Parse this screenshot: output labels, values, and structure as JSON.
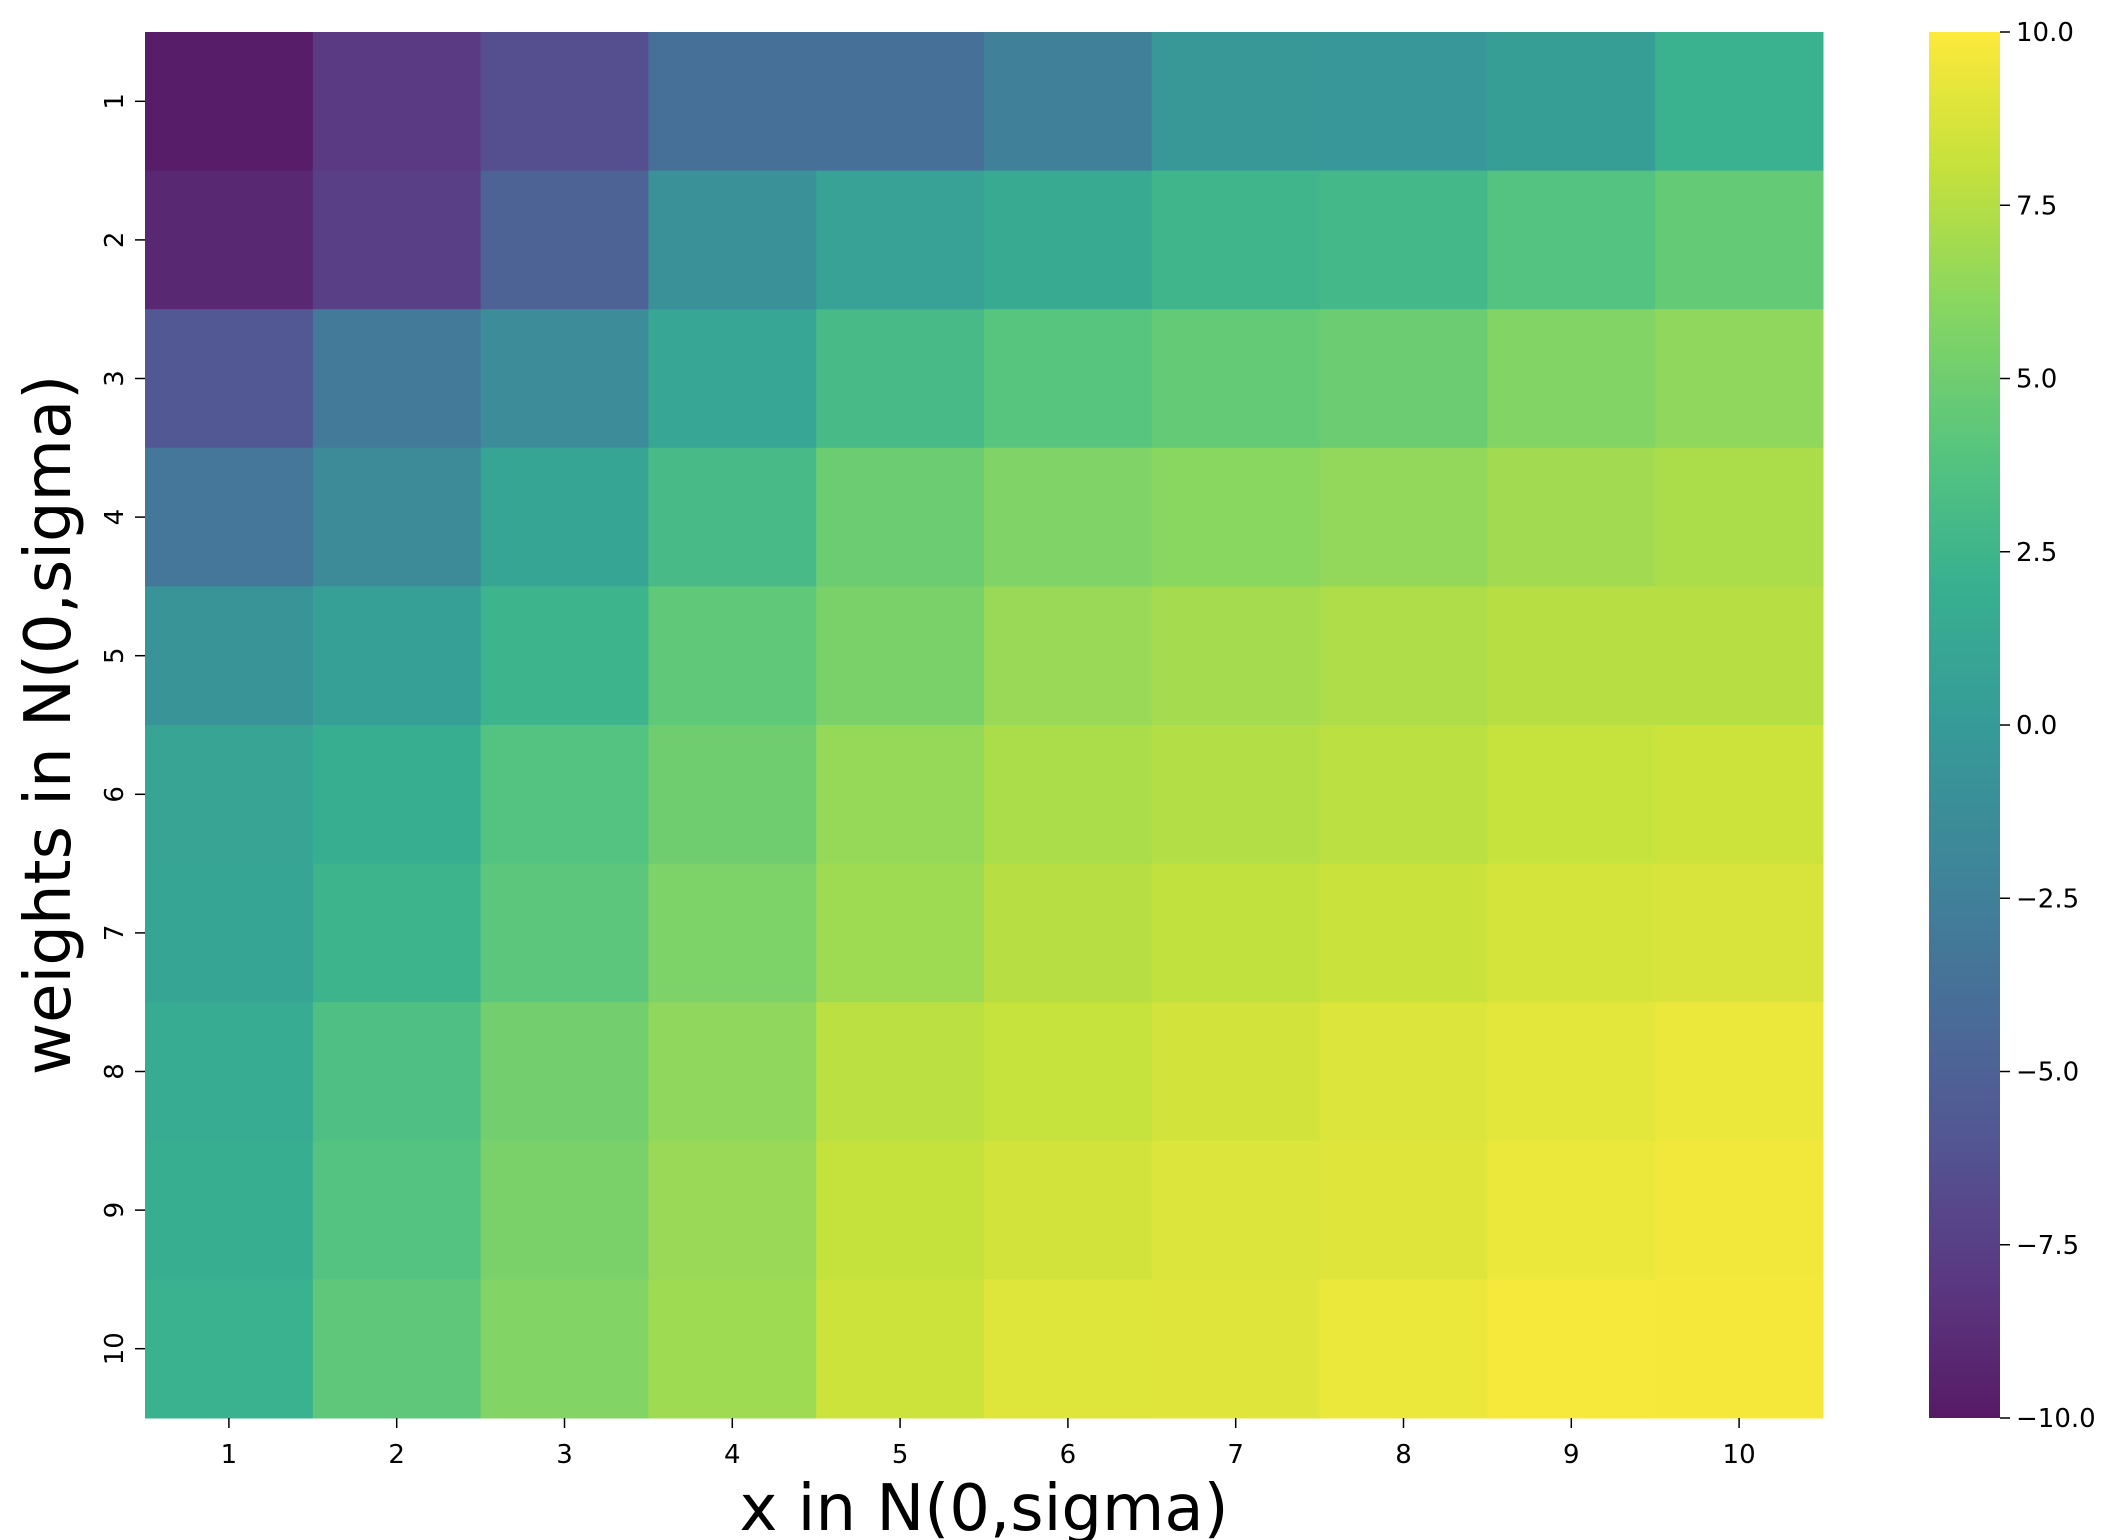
{
  "chart_data": {
    "type": "heatmap",
    "title": "",
    "xlabel": "x in N(0,sigma)",
    "ylabel": "weights in N(0,sigma)",
    "x_categories": [
      "1",
      "2",
      "3",
      "4",
      "5",
      "6",
      "7",
      "8",
      "9",
      "10"
    ],
    "y_categories": [
      "1",
      "2",
      "3",
      "4",
      "5",
      "6",
      "7",
      "8",
      "9",
      "10"
    ],
    "values": [
      [
        -9.8,
        -7.9,
        -6.5,
        -3.8,
        -3.8,
        -2.4,
        -0.3,
        -0.4,
        0.3,
        2.2
      ],
      [
        -9.1,
        -7.6,
        -4.9,
        -0.8,
        0.7,
        1.4,
        2.5,
        2.8,
        3.8,
        4.6
      ],
      [
        -5.8,
        -3.0,
        -1.3,
        1.1,
        3.0,
        4.0,
        4.6,
        4.9,
        5.8,
        6.3
      ],
      [
        -3.2,
        -1.6,
        1.0,
        3.0,
        4.9,
        5.7,
        6.1,
        6.4,
        6.9,
        7.2
      ],
      [
        -0.7,
        0.5,
        2.4,
        4.4,
        5.5,
        6.6,
        7.0,
        7.3,
        7.6,
        7.6
      ],
      [
        0.9,
        1.8,
        3.8,
        5.0,
        6.5,
        7.2,
        7.5,
        7.7,
        8.1,
        8.3
      ],
      [
        1.0,
        2.4,
        4.2,
        5.6,
        6.8,
        7.6,
        7.9,
        8.2,
        8.6,
        8.7
      ],
      [
        1.6,
        3.5,
        5.2,
        6.3,
        7.7,
        8.1,
        8.5,
        8.8,
        9.1,
        9.4
      ],
      [
        1.8,
        3.8,
        5.5,
        6.6,
        8.0,
        8.5,
        8.8,
        9.0,
        9.4,
        9.6
      ],
      [
        2.2,
        4.3,
        5.8,
        6.8,
        8.3,
        8.9,
        9.0,
        9.4,
        9.8,
        9.7
      ]
    ],
    "colormap": "viridis",
    "colorbar": {
      "min": -10.0,
      "max": 10.0,
      "ticks": [
        10.0,
        7.5,
        5.0,
        2.5,
        0.0,
        -2.5,
        -5.0,
        -7.5,
        -10.0
      ],
      "tick_labels": [
        "10.0",
        "7.5",
        "5.0",
        "2.5",
        "0.0",
        "−2.5",
        "−5.0",
        "−7.5",
        "−10.0"
      ]
    },
    "grid": false,
    "legend": "colorbar-right"
  }
}
